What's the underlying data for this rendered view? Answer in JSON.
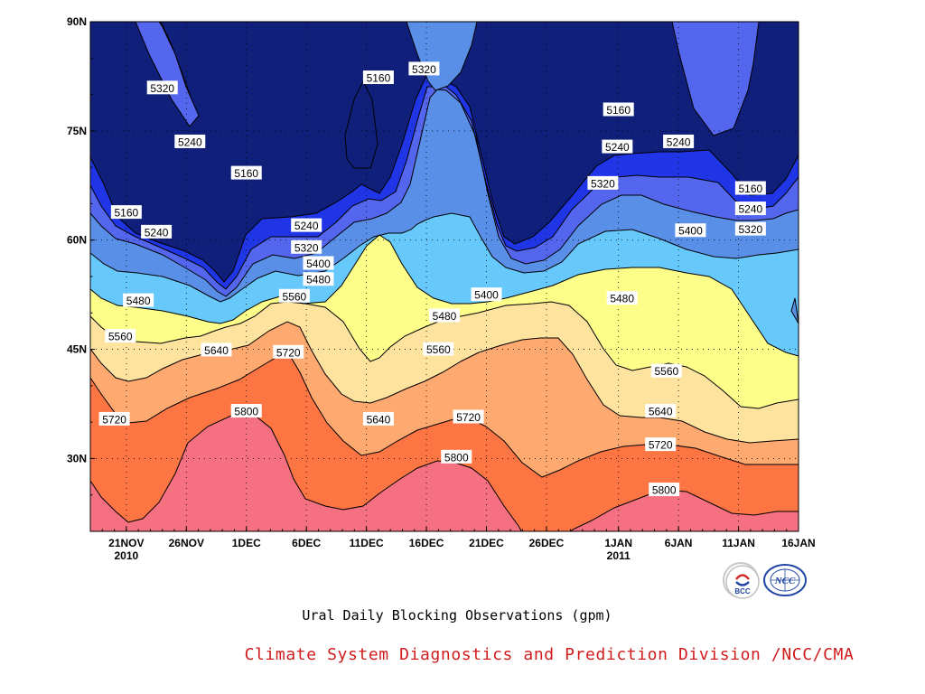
{
  "chart_data": {
    "type": "contour",
    "x_range": [
      "2010-11-18",
      "2011-01-16"
    ],
    "y_range": [
      20,
      90
    ],
    "x_ticks": [
      {
        "label": "21NOV",
        "year": "2010",
        "date": "2010-11-21"
      },
      {
        "label": "26NOV",
        "year": "",
        "date": "2010-11-26"
      },
      {
        "label": "1DEC",
        "year": "",
        "date": "2010-12-01"
      },
      {
        "label": "6DEC",
        "year": "",
        "date": "2010-12-06"
      },
      {
        "label": "11DEC",
        "year": "",
        "date": "2010-12-11"
      },
      {
        "label": "16DEC",
        "year": "",
        "date": "2010-12-16"
      },
      {
        "label": "21DEC",
        "year": "",
        "date": "2010-12-21"
      },
      {
        "label": "26DEC",
        "year": "",
        "date": "2010-12-26"
      },
      {
        "label": "1JAN",
        "year": "2011",
        "date": "2011-01-01"
      },
      {
        "label": "6JAN",
        "year": "",
        "date": "2011-01-06"
      },
      {
        "label": "11JAN",
        "year": "",
        "date": "2011-01-11"
      },
      {
        "label": "16JAN",
        "year": "",
        "date": "2011-01-16"
      }
    ],
    "y_ticks": [
      {
        "label": "30N",
        "value": 30
      },
      {
        "label": "45N",
        "value": 45
      },
      {
        "label": "60N",
        "value": 60
      },
      {
        "label": "75N",
        "value": 75
      },
      {
        "label": "90N",
        "value": 90
      }
    ],
    "grid": true,
    "levels": [
      5160,
      5240,
      5320,
      5400,
      5480,
      5560,
      5640,
      5720,
      5800
    ],
    "fill_colors": [
      "#0f1f7a",
      "#1f35e6",
      "#5566ee",
      "#5a8fe8",
      "#66c8fb",
      "#fdfd8a",
      "#fde39e",
      "#fda96f",
      "#fc7542",
      "#f57081"
    ],
    "line_color": "#000000",
    "contour_labels": [
      {
        "text": "5320",
        "date": "2010-11-24",
        "lat": 80.9
      },
      {
        "text": "5240",
        "date": "2010-11-26.3",
        "lat": 73.5
      },
      {
        "text": "5160",
        "date": "2010-12-01",
        "lat": 69.2
      },
      {
        "text": "5160",
        "date": "2010-11-21",
        "lat": 63.8
      },
      {
        "text": "5240",
        "date": "2010-11-23.5",
        "lat": 61.1
      },
      {
        "text": "5480",
        "date": "2010-11-22",
        "lat": 51.7
      },
      {
        "text": "5560",
        "date": "2010-11-20.5",
        "lat": 46.8
      },
      {
        "text": "5640",
        "date": "2010-11-28.5",
        "lat": 44.9
      },
      {
        "text": "5720",
        "date": "2010-11-20",
        "lat": 35.4
      },
      {
        "text": "5800",
        "date": "2010-12-01",
        "lat": 36.5
      },
      {
        "text": "5720",
        "date": "2010-12-04.5",
        "lat": 44.6
      },
      {
        "text": "5240",
        "date": "2010-12-06",
        "lat": 62.0
      },
      {
        "text": "5320",
        "date": "2010-12-06",
        "lat": 59.0
      },
      {
        "text": "5400",
        "date": "2010-12-07",
        "lat": 56.8
      },
      {
        "text": "5480",
        "date": "2010-12-07",
        "lat": 54.6
      },
      {
        "text": "5560",
        "date": "2010-12-05",
        "lat": 52.3
      },
      {
        "text": "5160",
        "date": "2010-12-12",
        "lat": 82.3
      },
      {
        "text": "5320",
        "date": "2010-12-15.8",
        "lat": 83.5
      },
      {
        "text": "5640",
        "date": "2010-12-12",
        "lat": 35.4
      },
      {
        "text": "5560",
        "date": "2010-12-17",
        "lat": 45.0
      },
      {
        "text": "5480",
        "date": "2010-12-17.5",
        "lat": 49.6
      },
      {
        "text": "5720",
        "date": "2010-12-19.5",
        "lat": 35.7
      },
      {
        "text": "5800",
        "date": "2010-12-18.5",
        "lat": 30.2
      },
      {
        "text": "5400",
        "date": "2010-12-21",
        "lat": 52.5
      },
      {
        "text": "5160",
        "date": "2011-01-01",
        "lat": 77.9
      },
      {
        "text": "5240",
        "date": "2010-12-31.9",
        "lat": 72.8
      },
      {
        "text": "5320",
        "date": "2010-12-30.7",
        "lat": 67.8
      },
      {
        "text": "5480",
        "date": "2011-01-01.3",
        "lat": 52.0
      },
      {
        "text": "5240",
        "date": "2011-01-06",
        "lat": 73.5
      },
      {
        "text": "5400",
        "date": "2011-01-07",
        "lat": 61.3
      },
      {
        "text": "5560",
        "date": "2011-01-05",
        "lat": 42.0
      },
      {
        "text": "5640",
        "date": "2011-01-04.5",
        "lat": 36.5
      },
      {
        "text": "5720",
        "date": "2011-01-04.5",
        "lat": 31.9
      },
      {
        "text": "5800",
        "date": "2011-01-04.8",
        "lat": 25.7
      },
      {
        "text": "5160",
        "date": "2011-01-12",
        "lat": 67.1
      },
      {
        "text": "5240",
        "date": "2011-01-12",
        "lat": 64.3
      },
      {
        "text": "5320",
        "date": "2011-01-12",
        "lat": 61.5
      }
    ]
  },
  "subtitle": "Ural Daily Blocking Observations (gpm)",
  "credit": "Climate System Diagnostics and Prediction Division /NCC/CMA",
  "logos": {
    "bcc": {
      "text": "BCC",
      "name": "bcc-logo"
    },
    "ncc": {
      "text": "NCC",
      "name": "ncc-logo"
    }
  }
}
